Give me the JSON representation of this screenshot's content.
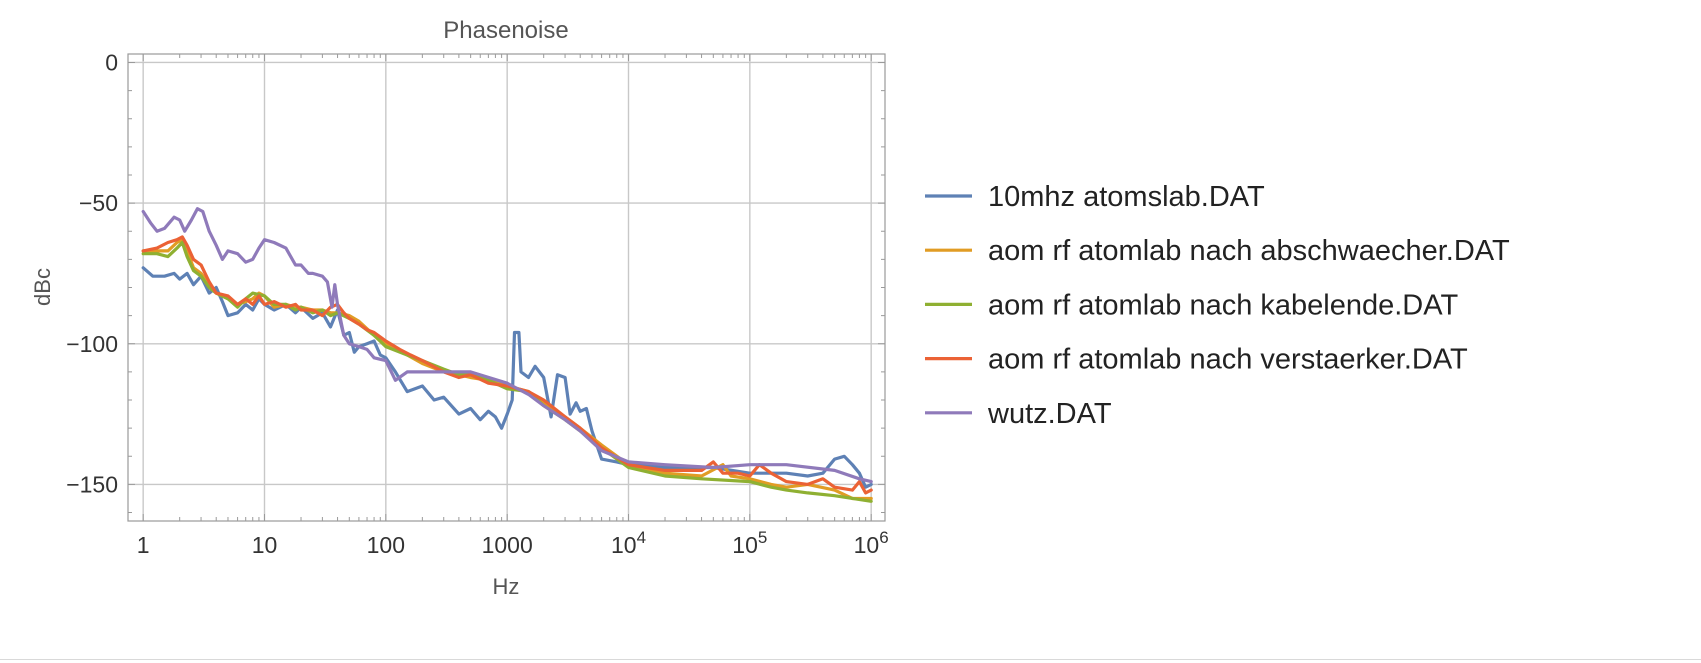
{
  "chart_data": {
    "type": "line",
    "title": "Phasenoise",
    "xlabel": "Hz",
    "ylabel": "dBc",
    "x_scale": "log",
    "xlim": [
      0.75,
      1300000
    ],
    "ylim": [
      -163,
      3
    ],
    "grid": true,
    "legend_position": "right",
    "x_ticks": [
      {
        "value": 1,
        "label": "1"
      },
      {
        "value": 10,
        "label": "10"
      },
      {
        "value": 100,
        "label": "100"
      },
      {
        "value": 1000,
        "label": "1000"
      },
      {
        "value": 10000,
        "label": "10",
        "exp": "4"
      },
      {
        "value": 100000,
        "label": "10",
        "exp": "5"
      },
      {
        "value": 1000000,
        "label": "10",
        "exp": "6"
      }
    ],
    "y_ticks": [
      {
        "value": 0,
        "label": "0"
      },
      {
        "value": -50,
        "label": "−50"
      },
      {
        "value": -100,
        "label": "−100"
      },
      {
        "value": -150,
        "label": "−150"
      }
    ],
    "series": [
      {
        "name": "10mhz atomslab.DAT",
        "color": "#5e81b5",
        "points": [
          [
            1,
            -73
          ],
          [
            1.2,
            -76
          ],
          [
            1.5,
            -76
          ],
          [
            1.8,
            -75
          ],
          [
            2,
            -77
          ],
          [
            2.3,
            -75
          ],
          [
            2.6,
            -79
          ],
          [
            3,
            -76
          ],
          [
            3.5,
            -82
          ],
          [
            4,
            -80
          ],
          [
            4.5,
            -85
          ],
          [
            5,
            -90
          ],
          [
            6,
            -89
          ],
          [
            7,
            -86
          ],
          [
            8,
            -88
          ],
          [
            9,
            -84
          ],
          [
            10,
            -86
          ],
          [
            12,
            -88
          ],
          [
            15,
            -86
          ],
          [
            18,
            -89
          ],
          [
            20,
            -87
          ],
          [
            25,
            -91
          ],
          [
            30,
            -89
          ],
          [
            35,
            -94
          ],
          [
            40,
            -88
          ],
          [
            45,
            -97
          ],
          [
            50,
            -96
          ],
          [
            55,
            -103
          ],
          [
            60,
            -101
          ],
          [
            70,
            -100
          ],
          [
            80,
            -99
          ],
          [
            90,
            -104
          ],
          [
            100,
            -105
          ],
          [
            120,
            -110
          ],
          [
            150,
            -117
          ],
          [
            200,
            -115
          ],
          [
            250,
            -120
          ],
          [
            300,
            -119
          ],
          [
            400,
            -125
          ],
          [
            500,
            -123
          ],
          [
            600,
            -127
          ],
          [
            700,
            -124
          ],
          [
            800,
            -126
          ],
          [
            900,
            -130
          ],
          [
            1000,
            -125
          ],
          [
            1100,
            -120
          ],
          [
            1150,
            -96
          ],
          [
            1250,
            -96
          ],
          [
            1300,
            -110
          ],
          [
            1500,
            -112
          ],
          [
            1700,
            -108
          ],
          [
            2000,
            -112
          ],
          [
            2300,
            -126
          ],
          [
            2600,
            -111
          ],
          [
            3000,
            -112
          ],
          [
            3300,
            -125
          ],
          [
            3700,
            -121
          ],
          [
            4000,
            -124
          ],
          [
            4500,
            -123
          ],
          [
            5000,
            -131
          ],
          [
            6000,
            -141
          ],
          [
            8000,
            -142
          ],
          [
            10000,
            -143
          ],
          [
            20000,
            -144
          ],
          [
            50000,
            -144
          ],
          [
            100000,
            -146
          ],
          [
            200000,
            -146
          ],
          [
            300000,
            -147
          ],
          [
            400000,
            -146
          ],
          [
            500000,
            -141
          ],
          [
            600000,
            -140
          ],
          [
            700000,
            -143
          ],
          [
            800000,
            -146
          ],
          [
            900000,
            -151
          ],
          [
            1000000,
            -150
          ]
        ]
      },
      {
        "name": "aom rf atomlab nach abschwaecher.DAT",
        "color": "#e19c24",
        "points": [
          [
            1,
            -67
          ],
          [
            1.3,
            -67
          ],
          [
            1.6,
            -67
          ],
          [
            1.9,
            -64
          ],
          [
            2.1,
            -63
          ],
          [
            2.3,
            -67
          ],
          [
            2.6,
            -73
          ],
          [
            3,
            -75
          ],
          [
            3.5,
            -79
          ],
          [
            4,
            -82
          ],
          [
            5,
            -84
          ],
          [
            6,
            -86
          ],
          [
            7,
            -85
          ],
          [
            8,
            -84
          ],
          [
            9,
            -82
          ],
          [
            10,
            -83
          ],
          [
            12,
            -87
          ],
          [
            15,
            -86
          ],
          [
            18,
            -87
          ],
          [
            20,
            -87
          ],
          [
            25,
            -88
          ],
          [
            30,
            -88
          ],
          [
            35,
            -89
          ],
          [
            40,
            -89
          ],
          [
            50,
            -90
          ],
          [
            60,
            -92
          ],
          [
            80,
            -97
          ],
          [
            100,
            -100
          ],
          [
            150,
            -104
          ],
          [
            200,
            -107
          ],
          [
            300,
            -110
          ],
          [
            400,
            -111
          ],
          [
            500,
            -112
          ],
          [
            700,
            -113
          ],
          [
            1000,
            -115
          ],
          [
            1500,
            -117
          ],
          [
            2000,
            -121
          ],
          [
            3000,
            -126
          ],
          [
            4000,
            -130
          ],
          [
            6000,
            -136
          ],
          [
            10000,
            -143
          ],
          [
            20000,
            -146
          ],
          [
            40000,
            -147
          ],
          [
            60000,
            -143
          ],
          [
            70000,
            -147
          ],
          [
            100000,
            -148
          ],
          [
            150000,
            -150
          ],
          [
            200000,
            -151
          ],
          [
            300000,
            -150
          ],
          [
            500000,
            -152
          ],
          [
            700000,
            -155
          ],
          [
            1000000,
            -155
          ]
        ]
      },
      {
        "name": "aom rf atomlab nach kabelende.DAT",
        "color": "#8fb032",
        "points": [
          [
            1,
            -68
          ],
          [
            1.3,
            -68
          ],
          [
            1.6,
            -69
          ],
          [
            1.9,
            -66
          ],
          [
            2.1,
            -64
          ],
          [
            2.3,
            -69
          ],
          [
            2.6,
            -74
          ],
          [
            3,
            -76
          ],
          [
            3.5,
            -80
          ],
          [
            4,
            -82
          ],
          [
            5,
            -84
          ],
          [
            6,
            -87
          ],
          [
            7,
            -84
          ],
          [
            8,
            -82
          ],
          [
            10,
            -83
          ],
          [
            12,
            -86
          ],
          [
            15,
            -86
          ],
          [
            18,
            -88
          ],
          [
            20,
            -87
          ],
          [
            25,
            -89
          ],
          [
            30,
            -88
          ],
          [
            35,
            -90
          ],
          [
            40,
            -89
          ],
          [
            50,
            -91
          ],
          [
            60,
            -93
          ],
          [
            80,
            -97
          ],
          [
            100,
            -101
          ],
          [
            150,
            -104
          ],
          [
            200,
            -106
          ],
          [
            300,
            -109
          ],
          [
            400,
            -111
          ],
          [
            500,
            -111
          ],
          [
            700,
            -113
          ],
          [
            1000,
            -116
          ],
          [
            1500,
            -117
          ],
          [
            2000,
            -122
          ],
          [
            3000,
            -127
          ],
          [
            4000,
            -131
          ],
          [
            6000,
            -137
          ],
          [
            10000,
            -144
          ],
          [
            20000,
            -147
          ],
          [
            40000,
            -148
          ],
          [
            100000,
            -149
          ],
          [
            150000,
            -151
          ],
          [
            200000,
            -152
          ],
          [
            300000,
            -153
          ],
          [
            500000,
            -154
          ],
          [
            1000000,
            -156
          ]
        ]
      },
      {
        "name": "aom rf atomlab nach verstaerker.DAT",
        "color": "#eb6235",
        "points": [
          [
            1,
            -67
          ],
          [
            1.3,
            -66
          ],
          [
            1.6,
            -64
          ],
          [
            1.9,
            -63
          ],
          [
            2.1,
            -62
          ],
          [
            2.3,
            -65
          ],
          [
            2.6,
            -70
          ],
          [
            3,
            -72
          ],
          [
            3.5,
            -78
          ],
          [
            4,
            -82
          ],
          [
            5,
            -83
          ],
          [
            6,
            -86
          ],
          [
            7,
            -84
          ],
          [
            8,
            -86
          ],
          [
            9,
            -83
          ],
          [
            10,
            -86
          ],
          [
            12,
            -85
          ],
          [
            15,
            -87
          ],
          [
            18,
            -86
          ],
          [
            20,
            -88
          ],
          [
            25,
            -88
          ],
          [
            30,
            -90
          ],
          [
            35,
            -87
          ],
          [
            40,
            -86
          ],
          [
            45,
            -89
          ],
          [
            50,
            -91
          ],
          [
            60,
            -93
          ],
          [
            70,
            -95
          ],
          [
            80,
            -96
          ],
          [
            100,
            -99
          ],
          [
            130,
            -102
          ],
          [
            160,
            -104
          ],
          [
            200,
            -106
          ],
          [
            300,
            -110
          ],
          [
            400,
            -112
          ],
          [
            500,
            -111
          ],
          [
            700,
            -114
          ],
          [
            1000,
            -115
          ],
          [
            1500,
            -117
          ],
          [
            2000,
            -120
          ],
          [
            3000,
            -126
          ],
          [
            4000,
            -130
          ],
          [
            6000,
            -137
          ],
          [
            10000,
            -143
          ],
          [
            20000,
            -145
          ],
          [
            40000,
            -145
          ],
          [
            50000,
            -142
          ],
          [
            60000,
            -146
          ],
          [
            80000,
            -146
          ],
          [
            100000,
            -147
          ],
          [
            120000,
            -143
          ],
          [
            150000,
            -146
          ],
          [
            200000,
            -149
          ],
          [
            300000,
            -150
          ],
          [
            400000,
            -148
          ],
          [
            500000,
            -151
          ],
          [
            700000,
            -152
          ],
          [
            800000,
            -149
          ],
          [
            900000,
            -153
          ],
          [
            1000000,
            -152
          ]
        ]
      },
      {
        "name": "wutz.DAT",
        "color": "#8f7aba",
        "points": [
          [
            1,
            -53
          ],
          [
            1.15,
            -57
          ],
          [
            1.3,
            -60
          ],
          [
            1.5,
            -59
          ],
          [
            1.8,
            -55
          ],
          [
            2,
            -56
          ],
          [
            2.2,
            -60
          ],
          [
            2.5,
            -56
          ],
          [
            2.8,
            -52
          ],
          [
            3.1,
            -53
          ],
          [
            3.5,
            -60
          ],
          [
            4,
            -65
          ],
          [
            4.5,
            -70
          ],
          [
            5,
            -67
          ],
          [
            6,
            -68
          ],
          [
            7,
            -71
          ],
          [
            8,
            -70
          ],
          [
            9,
            -66
          ],
          [
            10,
            -63
          ],
          [
            12,
            -64
          ],
          [
            15,
            -66
          ],
          [
            18,
            -72
          ],
          [
            20,
            -72
          ],
          [
            23,
            -75
          ],
          [
            25,
            -75
          ],
          [
            30,
            -76
          ],
          [
            33,
            -78
          ],
          [
            36,
            -87
          ],
          [
            38,
            -79
          ],
          [
            40,
            -86
          ],
          [
            45,
            -97
          ],
          [
            50,
            -100
          ],
          [
            60,
            -101
          ],
          [
            70,
            -102
          ],
          [
            80,
            -105
          ],
          [
            100,
            -106
          ],
          [
            120,
            -113
          ],
          [
            150,
            -110
          ],
          [
            200,
            -110
          ],
          [
            300,
            -110
          ],
          [
            500,
            -110
          ],
          [
            1000,
            -114
          ],
          [
            1500,
            -118
          ],
          [
            2000,
            -122
          ],
          [
            3000,
            -127
          ],
          [
            4000,
            -131
          ],
          [
            6000,
            -138
          ],
          [
            10000,
            -142
          ],
          [
            20000,
            -143
          ],
          [
            50000,
            -144
          ],
          [
            100000,
            -143
          ],
          [
            200000,
            -143
          ],
          [
            500000,
            -145
          ],
          [
            800000,
            -148
          ],
          [
            1000000,
            -149
          ]
        ]
      }
    ]
  }
}
